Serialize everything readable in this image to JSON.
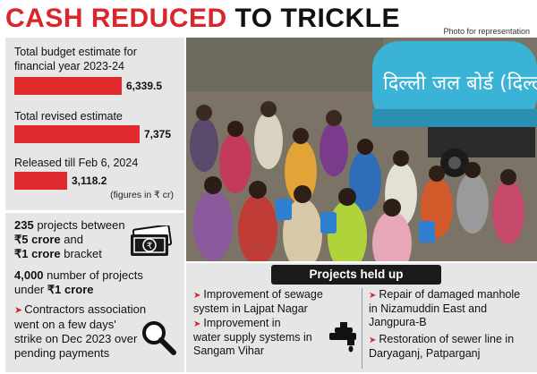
{
  "headline": {
    "part1": "CASH REDUCED",
    "part2": " TO TRICKLE"
  },
  "photo_credit": "Photo for representation",
  "budget": {
    "items": [
      {
        "label_line1": "Total budget estimate for",
        "label_line2": "financial year 2023-24",
        "value": "6,339.5",
        "amount": 6339.5
      },
      {
        "label_line1": "Total revised estimate",
        "label_line2": "",
        "value": "7,375",
        "amount": 7375
      },
      {
        "label_line1": "Released till Feb 6, 2024",
        "label_line2": "",
        "value": "3,118.2",
        "amount": 3118.2
      }
    ],
    "units_note": "(figures in ₹ cr)"
  },
  "photo": {
    "tanker_text": "दिल्ली जल बोर्ड (दिल्ली"
  },
  "stats": {
    "s1_bold": "235",
    "s1_rest": " projects between",
    "s1_line2_bold": "₹5 crore",
    "s1_line2_rest": " and",
    "s1_line3_bold": "₹1 crore",
    "s1_line3_rest": " bracket",
    "s2_bold": "4,000",
    "s2_rest": " number of projects",
    "s2_line2_rest": "under ",
    "s2_line2_bold": "₹1 crore",
    "s3_line1": "Contractors association",
    "s3_line2": "went on a few days'",
    "s3_line3": "strike on Dec 2023 over",
    "s3_line4": "pending payments"
  },
  "projects": {
    "header": "Projects held up",
    "left": [
      {
        "line1": "Improvement of sewage",
        "line2": "system in Lajpat Nagar",
        "line3": ""
      },
      {
        "line1": "Improvement in",
        "line2": "water supply systems in",
        "line3": "Sangam Vihar"
      }
    ],
    "right": [
      {
        "line1": "Repair of damaged manhole",
        "line2": "in Nizamuddin East and",
        "line3": "Jangpura-B"
      },
      {
        "line1": "Restoration of sewer line in",
        "line2": "Daryaganj, Patparganj",
        "line3": ""
      }
    ]
  },
  "colors": {
    "accent_red": "#d8262b",
    "panel_grey": "#e6e6e6",
    "tanker_blue": "#3bb3d6"
  }
}
